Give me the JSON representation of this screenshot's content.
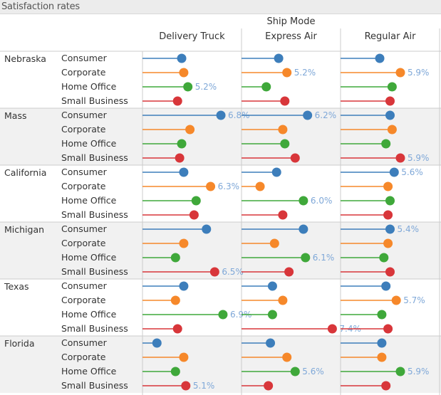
{
  "title": "Satisfaction rates",
  "column_group_header": "Ship Mode",
  "colors": {
    "Consumer": "#3d7ebb",
    "Corporate": "#f6882a",
    "Home Office": "#3fa83a",
    "Small Business": "#d8363a",
    "label": "#7fa8d8",
    "band": "#f1f1f1",
    "divider": "#cccccc"
  },
  "chart_data": {
    "type": "lollipop",
    "title": "Satisfaction rates",
    "column_header": "Ship Mode",
    "columns": [
      "Delivery Truck",
      "Express Air",
      "Regular Air"
    ],
    "rows": [
      "Nebraska",
      "Mass",
      "California",
      "Michigan",
      "Texas",
      "Florida"
    ],
    "segments": [
      "Consumer",
      "Corporate",
      "Home Office",
      "Small Business"
    ],
    "x_range": [
      3.0,
      7.8
    ],
    "values": {
      "Nebraska": {
        "Delivery Truck": [
          4.9,
          5.0,
          5.2,
          4.7
        ],
        "Express Air": [
          4.8,
          5.2,
          4.2,
          5.1
        ],
        "Regular Air": [
          4.9,
          5.9,
          5.5,
          5.4
        ]
      },
      "Mass": {
        "Delivery Truck": [
          6.8,
          5.3,
          4.9,
          4.8
        ],
        "Express Air": [
          6.2,
          5.0,
          5.1,
          5.6
        ],
        "Regular Air": [
          5.4,
          5.5,
          5.2,
          5.9
        ]
      },
      "California": {
        "Delivery Truck": [
          5.0,
          6.3,
          5.6,
          5.5
        ],
        "Express Air": [
          4.7,
          3.9,
          6.0,
          5.0
        ],
        "Regular Air": [
          5.6,
          5.3,
          5.4,
          5.3
        ]
      },
      "Michigan": {
        "Delivery Truck": [
          6.1,
          5.0,
          4.6,
          6.5
        ],
        "Express Air": [
          6.0,
          4.6,
          6.1,
          5.3
        ],
        "Regular Air": [
          5.4,
          5.3,
          5.1,
          5.4
        ]
      },
      "Texas": {
        "Delivery Truck": [
          5.0,
          4.6,
          6.9,
          4.7
        ],
        "Express Air": [
          4.5,
          5.0,
          4.5,
          7.4
        ],
        "Regular Air": [
          5.2,
          5.7,
          5.0,
          5.3
        ]
      },
      "Florida": {
        "Delivery Truck": [
          3.7,
          5.0,
          4.6,
          5.1
        ],
        "Express Air": [
          4.4,
          5.2,
          5.6,
          4.3
        ],
        "Regular Air": [
          5.0,
          5.0,
          5.9,
          5.2
        ]
      }
    },
    "data_labels": [
      {
        "row": "Nebraska",
        "column": "Express Air",
        "segment": "Corporate",
        "text": "5.2%"
      },
      {
        "row": "Nebraska",
        "column": "Regular Air",
        "segment": "Corporate",
        "text": "5.9%"
      },
      {
        "row": "Nebraska",
        "column": "Delivery Truck",
        "segment": "Home Office",
        "text": "5.2%"
      },
      {
        "row": "Mass",
        "column": "Delivery Truck",
        "segment": "Consumer",
        "text": "6.8%"
      },
      {
        "row": "Mass",
        "column": "Express Air",
        "segment": "Consumer",
        "text": "6.2%"
      },
      {
        "row": "Mass",
        "column": "Regular Air",
        "segment": "Small Business",
        "text": "5.9%"
      },
      {
        "row": "California",
        "column": "Regular Air",
        "segment": "Consumer",
        "text": "5.6%"
      },
      {
        "row": "California",
        "column": "Delivery Truck",
        "segment": "Corporate",
        "text": "6.3%"
      },
      {
        "row": "California",
        "column": "Express Air",
        "segment": "Home Office",
        "text": "6.0%"
      },
      {
        "row": "Michigan",
        "column": "Regular Air",
        "segment": "Consumer",
        "text": "5.4%"
      },
      {
        "row": "Michigan",
        "column": "Express Air",
        "segment": "Home Office",
        "text": "6.1%"
      },
      {
        "row": "Michigan",
        "column": "Delivery Truck",
        "segment": "Small Business",
        "text": "6.5%"
      },
      {
        "row": "Texas",
        "column": "Regular Air",
        "segment": "Corporate",
        "text": "5.7%"
      },
      {
        "row": "Texas",
        "column": "Delivery Truck",
        "segment": "Home Office",
        "text": "6.9%"
      },
      {
        "row": "Texas",
        "column": "Express Air",
        "segment": "Small Business",
        "text": "7.4%"
      },
      {
        "row": "Florida",
        "column": "Express Air",
        "segment": "Home Office",
        "text": "5.6%"
      },
      {
        "row": "Florida",
        "column": "Regular Air",
        "segment": "Home Office",
        "text": "5.9%"
      },
      {
        "row": "Florida",
        "column": "Delivery Truck",
        "segment": "Small Business",
        "text": "5.1%"
      }
    ]
  }
}
